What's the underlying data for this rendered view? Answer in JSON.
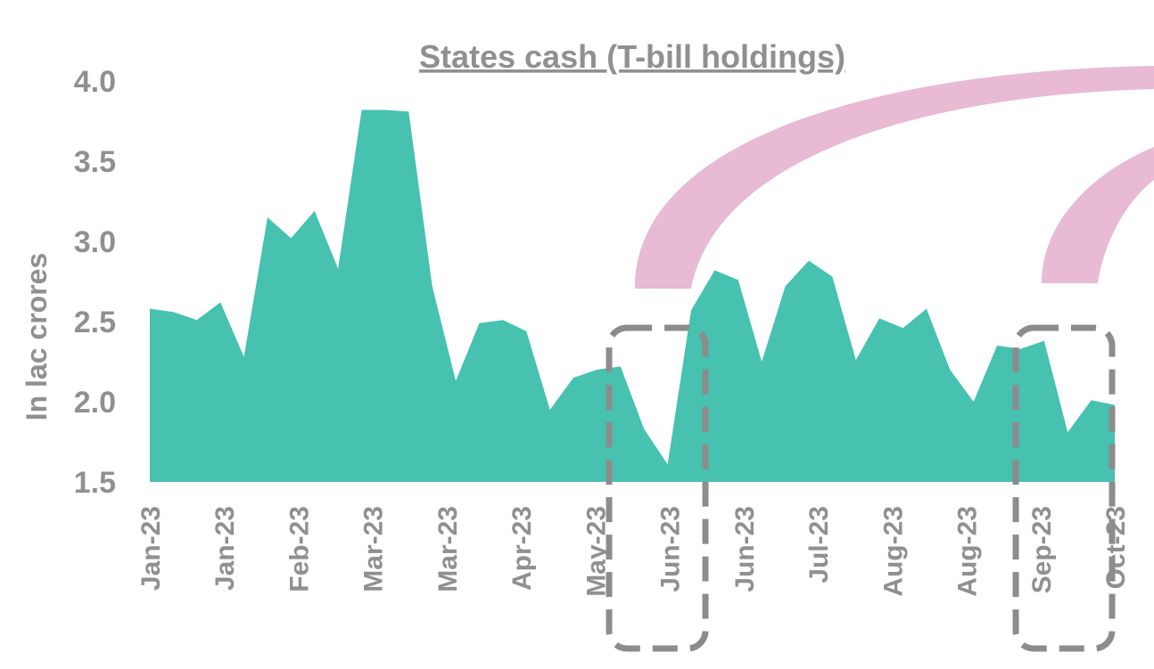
{
  "chart_data": {
    "type": "area",
    "title": "States cash (T-bill holdings)",
    "xlabel": "",
    "ylabel": "In lac crores",
    "ylim": [
      1.5,
      4.0
    ],
    "yticks": [
      "4.0",
      "3.5",
      "3.0",
      "2.5",
      "2.0",
      "1.5"
    ],
    "grid": false,
    "legend": "none",
    "x_tick_labels": [
      "Jan-23",
      "Jan-23",
      "Feb-23",
      "Mar-23",
      "Mar-23",
      "Apr-23",
      "May-23",
      "Jun-23",
      "Jun-23",
      "Jul-23",
      "Aug-23",
      "Aug-23",
      "Sep-23",
      "Oct-23"
    ],
    "values": [
      2.58,
      2.56,
      2.51,
      2.62,
      2.28,
      3.15,
      3.02,
      3.19,
      2.83,
      3.82,
      3.82,
      3.81,
      2.72,
      2.13,
      2.49,
      2.51,
      2.44,
      1.95,
      2.15,
      2.2,
      2.22,
      1.83,
      1.61,
      2.57,
      2.82,
      2.76,
      2.25,
      2.72,
      2.88,
      2.78,
      2.26,
      2.52,
      2.46,
      2.58,
      2.2,
      2.0,
      2.35,
      2.33,
      2.38,
      1.81,
      2.01,
      1.98
    ],
    "colors": {
      "area": "#47c1b0",
      "text": "#909090",
      "highlight_box": "#8c8c8c",
      "arrow": "#e8bad4"
    }
  }
}
